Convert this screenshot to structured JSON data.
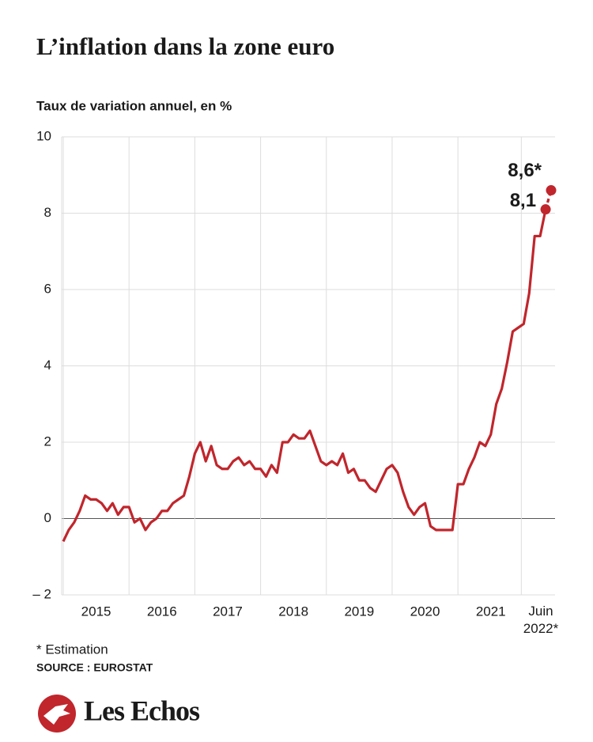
{
  "chart_data": {
    "type": "line",
    "title": "L’inflation dans la zone euro",
    "subtitle": "Taux de variation annuel, en %",
    "categories": [
      null,
      null,
      null,
      null,
      null,
      null,
      "2015",
      null,
      null,
      null,
      null,
      null,
      null,
      null,
      null,
      null,
      null,
      null,
      "2016",
      null,
      null,
      null,
      null,
      null,
      null,
      null,
      null,
      null,
      null,
      null,
      "2017",
      null,
      null,
      null,
      null,
      null,
      null,
      null,
      null,
      null,
      null,
      null,
      "2018",
      null,
      null,
      null,
      null,
      null,
      null,
      null,
      null,
      null,
      null,
      null,
      "2019",
      null,
      null,
      null,
      null,
      null,
      null,
      null,
      null,
      null,
      null,
      null,
      "2020",
      null,
      null,
      null,
      null,
      null,
      null,
      null,
      null,
      null,
      null,
      null,
      "2021",
      null,
      null,
      null,
      null,
      null,
      null,
      null,
      null,
      null,
      null,
      "Juin 2022*"
    ],
    "series": [
      {
        "color": "#c0262c",
        "values": [
          -0.6,
          -0.3,
          -0.1,
          0.2,
          0.6,
          0.5,
          0.5,
          0.4,
          0.2,
          0.4,
          0.1,
          0.3,
          0.3,
          -0.1,
          0.0,
          -0.3,
          -0.1,
          0.0,
          0.2,
          0.2,
          0.4,
          0.5,
          0.6,
          1.1,
          1.7,
          2.0,
          1.5,
          1.9,
          1.4,
          1.3,
          1.3,
          1.5,
          1.6,
          1.4,
          1.5,
          1.3,
          1.3,
          1.1,
          1.4,
          1.2,
          2.0,
          2.0,
          2.2,
          2.1,
          2.1,
          2.3,
          1.9,
          1.5,
          1.4,
          1.5,
          1.4,
          1.7,
          1.2,
          1.3,
          1.0,
          1.0,
          0.8,
          0.7,
          1.0,
          1.3,
          1.4,
          1.2,
          0.7,
          0.3,
          0.1,
          0.3,
          0.4,
          -0.2,
          -0.3,
          -0.3,
          -0.3,
          -0.3,
          0.9,
          0.9,
          1.3,
          1.6,
          2.0,
          1.9,
          2.2,
          3.0,
          3.4,
          4.1,
          4.9,
          5.0,
          5.1,
          5.9,
          7.4,
          7.4,
          8.1,
          8.6
        ],
        "value_labels": {
          "88": "8,1",
          "89": "8,6*"
        }
      }
    ],
    "ylim": [
      -2,
      10
    ],
    "yticks": [
      {
        "value": -2,
        "label": "– 2"
      },
      0,
      2,
      4,
      6,
      8,
      10
    ],
    "grid": true,
    "footnote": "* Estimation",
    "source": "SOURCE : EUROSTAT",
    "brand": "Les Echos"
  }
}
